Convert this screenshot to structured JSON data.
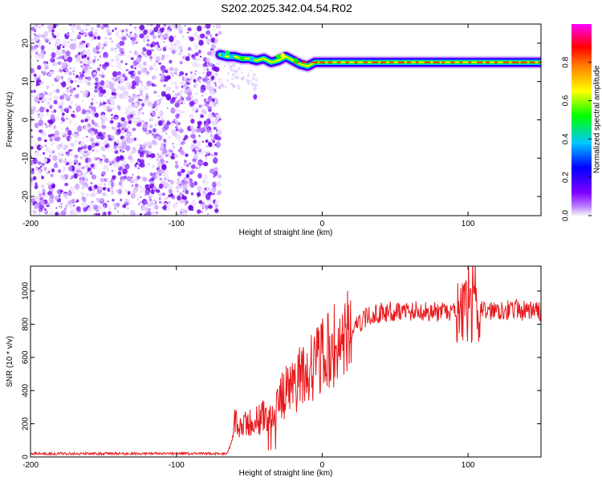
{
  "title": "S202.2025.342.04.54.R02",
  "chart_data": [
    {
      "type": "heatmap",
      "xlabel": "Height of straight line (km)",
      "ylabel": "Frequency (Hz)",
      "xlim": [
        -200,
        150
      ],
      "ylim": [
        -25,
        25
      ],
      "x_ticks": [
        -200,
        -100,
        0,
        100
      ],
      "y_ticks": [
        -20,
        -10,
        0,
        10,
        20
      ],
      "noise_region_x": [
        -200,
        -70
      ],
      "signal_track": {
        "x": [
          -70,
          -65,
          -60,
          -55,
          -50,
          -45,
          -40,
          -35,
          -30,
          -25,
          -20,
          -15,
          -10,
          -5,
          0,
          10,
          20,
          40,
          60,
          80,
          100,
          120,
          150
        ],
        "y": [
          17,
          16.5,
          16.5,
          16,
          16,
          15.5,
          16,
          15,
          15.5,
          16.5,
          15.5,
          14.5,
          14,
          15,
          15,
          15,
          15,
          15,
          15,
          15,
          15,
          15,
          15
        ]
      },
      "colorbar": {
        "label": "Normalized spectral amplitude",
        "range": [
          0,
          1
        ],
        "ticks": [
          "0.0",
          "0.2",
          "0.4",
          "0.6",
          "0.8"
        ],
        "colors": [
          "#f5f5f5",
          "#7f00ff",
          "#0000ff",
          "#00c8ff",
          "#00ff00",
          "#ffff00",
          "#ff8000",
          "#ff0000",
          "#ff00ff"
        ]
      }
    },
    {
      "type": "line",
      "xlabel": "Height of straight line (km)",
      "ylabel": "SNR (10 * v/v)",
      "xlim": [
        -200,
        150
      ],
      "ylim": [
        0,
        1150
      ],
      "x_ticks": [
        -200,
        -100,
        0,
        100
      ],
      "y_ticks": [
        0,
        200,
        400,
        600,
        800,
        1000
      ],
      "color": "#e8191c",
      "series": [
        {
          "x": [
            -200,
            -180,
            -160,
            -140,
            -120,
            -100,
            -80,
            -65,
            -62,
            -60,
            -55,
            -50,
            -45,
            -40,
            -35,
            -30,
            -25,
            -20,
            -15,
            -10,
            -5,
            0,
            5,
            10,
            15,
            20,
            25,
            30,
            40,
            50,
            60,
            70,
            80,
            90,
            95,
            100,
            103,
            105,
            110,
            120,
            130,
            140,
            150
          ],
          "values": [
            20,
            20,
            20,
            20,
            20,
            20,
            20,
            20,
            100,
            200,
            170,
            200,
            220,
            250,
            280,
            330,
            390,
            420,
            480,
            520,
            560,
            600,
            640,
            680,
            710,
            760,
            800,
            840,
            870,
            880,
            880,
            880,
            870,
            870,
            860,
            880,
            880,
            870,
            880,
            890,
            890,
            880,
            880
          ]
        }
      ]
    }
  ]
}
